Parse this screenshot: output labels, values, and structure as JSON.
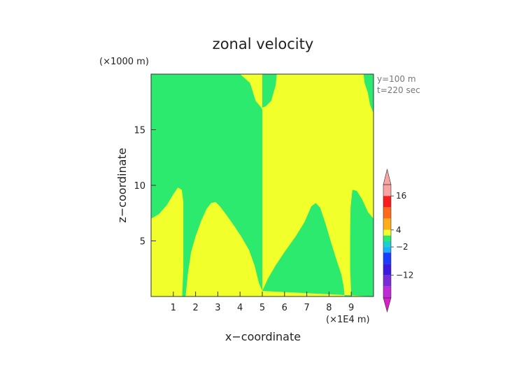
{
  "chart_data": {
    "type": "heatmap",
    "title": "zonal velocity",
    "xlabel": "x−coordinate",
    "ylabel": "z−coordinate",
    "x_unit": "(×1E4 m)",
    "y_unit": "(×1000 m)",
    "annotations": [
      "y=100 m",
      "t=220 sec"
    ],
    "xlim": [
      0,
      10
    ],
    "ylim": [
      0,
      20
    ],
    "x_ticks": [
      1,
      2,
      3,
      4,
      5,
      6,
      7,
      8,
      9
    ],
    "y_ticks": [
      5,
      10,
      15
    ],
    "colors": {
      "green": "#2bea6d",
      "yellow": "#f1ff2a"
    },
    "background_color": "yellow",
    "regions": [
      {
        "name": "left-green",
        "color": "green",
        "points": [
          [
            0.0,
            20.0
          ],
          [
            0.4,
            20.0
          ],
          [
            0.27,
            18.0
          ],
          [
            0.15,
            16.5
          ],
          [
            0.0,
            15.5
          ],
          [
            0.0,
            20.0
          ],
          [
            4.0,
            20.0
          ],
          [
            4.45,
            19.2
          ],
          [
            4.7,
            17.6
          ],
          [
            4.95,
            17.0
          ],
          [
            5.0,
            16.8
          ],
          [
            5.0,
            0.5
          ],
          [
            4.85,
            1.2
          ],
          [
            4.65,
            2.8
          ],
          [
            4.4,
            4.2
          ],
          [
            4.05,
            5.4
          ],
          [
            3.75,
            6.3
          ],
          [
            3.4,
            7.3
          ],
          [
            3.1,
            8.1
          ],
          [
            2.9,
            8.5
          ],
          [
            2.7,
            8.4
          ],
          [
            2.5,
            7.9
          ],
          [
            2.25,
            6.8
          ],
          [
            2.0,
            5.4
          ],
          [
            1.8,
            4.0
          ],
          [
            1.65,
            2.0
          ],
          [
            1.55,
            0.0
          ],
          [
            1.4,
            0.0
          ],
          [
            1.45,
            2.5
          ],
          [
            1.45,
            6.0
          ],
          [
            1.45,
            8.5
          ],
          [
            1.38,
            9.6
          ],
          [
            1.2,
            9.8
          ],
          [
            1.0,
            9.2
          ],
          [
            0.7,
            8.2
          ],
          [
            0.35,
            7.4
          ],
          [
            0.0,
            7.0
          ]
        ]
      },
      {
        "name": "right-green",
        "color": "green",
        "points": [
          [
            5.0,
            0.5
          ],
          [
            5.25,
            1.6
          ],
          [
            5.6,
            2.8
          ],
          [
            6.0,
            4.0
          ],
          [
            6.5,
            5.4
          ],
          [
            6.9,
            6.7
          ],
          [
            7.2,
            8.1
          ],
          [
            7.4,
            8.4
          ],
          [
            7.6,
            8.0
          ],
          [
            7.85,
            6.5
          ],
          [
            8.1,
            4.8
          ],
          [
            8.35,
            3.2
          ],
          [
            8.55,
            2.0
          ],
          [
            8.65,
            1.0
          ],
          [
            8.7,
            0.0
          ],
          [
            9.0,
            0.0
          ],
          [
            8.95,
            2.5
          ],
          [
            8.95,
            5.5
          ],
          [
            8.97,
            8.0
          ],
          [
            9.05,
            9.6
          ],
          [
            9.25,
            9.5
          ],
          [
            9.5,
            8.7
          ],
          [
            9.75,
            7.6
          ],
          [
            10.0,
            7.0
          ],
          [
            10.0,
            0.0
          ]
        ]
      },
      {
        "name": "top-green-lobe",
        "color": "green",
        "points": [
          [
            5.0,
            20.0
          ],
          [
            5.65,
            20.0
          ],
          [
            5.6,
            19.0
          ],
          [
            5.4,
            17.6
          ],
          [
            5.15,
            17.1
          ],
          [
            5.0,
            17.0
          ]
        ]
      },
      {
        "name": "top-right-green",
        "color": "green",
        "points": [
          [
            9.55,
            20.0
          ],
          [
            10.0,
            20.0
          ],
          [
            10.0,
            16.5
          ],
          [
            9.85,
            17.2
          ],
          [
            9.75,
            18.3
          ],
          [
            9.6,
            19.2
          ]
        ]
      }
    ],
    "colorbar": {
      "labels": [
        "16",
        "4",
        "−2",
        "−12"
      ],
      "min": -20,
      "max": 20,
      "segments": [
        {
          "from": 16,
          "to": 20,
          "color": "#f9a3a3"
        },
        {
          "from": 12,
          "to": 16,
          "color": "#fa1d1d"
        },
        {
          "from": 8,
          "to": 12,
          "color": "#ff6a1a"
        },
        {
          "from": 4,
          "to": 8,
          "color": "#ffae1a"
        },
        {
          "from": 2,
          "to": 4,
          "color": "#f1ff2a"
        },
        {
          "from": 0,
          "to": 2,
          "color": "#2bea6d"
        },
        {
          "from": -2,
          "to": 0,
          "color": "#1ad0d0"
        },
        {
          "from": -4,
          "to": -2,
          "color": "#1ab0ff"
        },
        {
          "from": -8,
          "to": -4,
          "color": "#1a3cff"
        },
        {
          "from": -12,
          "to": -8,
          "color": "#3a1adf"
        },
        {
          "from": -16,
          "to": -12,
          "color": "#7a2bd8"
        },
        {
          "from": -20,
          "to": -16,
          "color": "#c02bd8"
        }
      ],
      "top_cap_color": "#f9a3a3",
      "bottom_cap_color": "#d81fc9"
    }
  }
}
